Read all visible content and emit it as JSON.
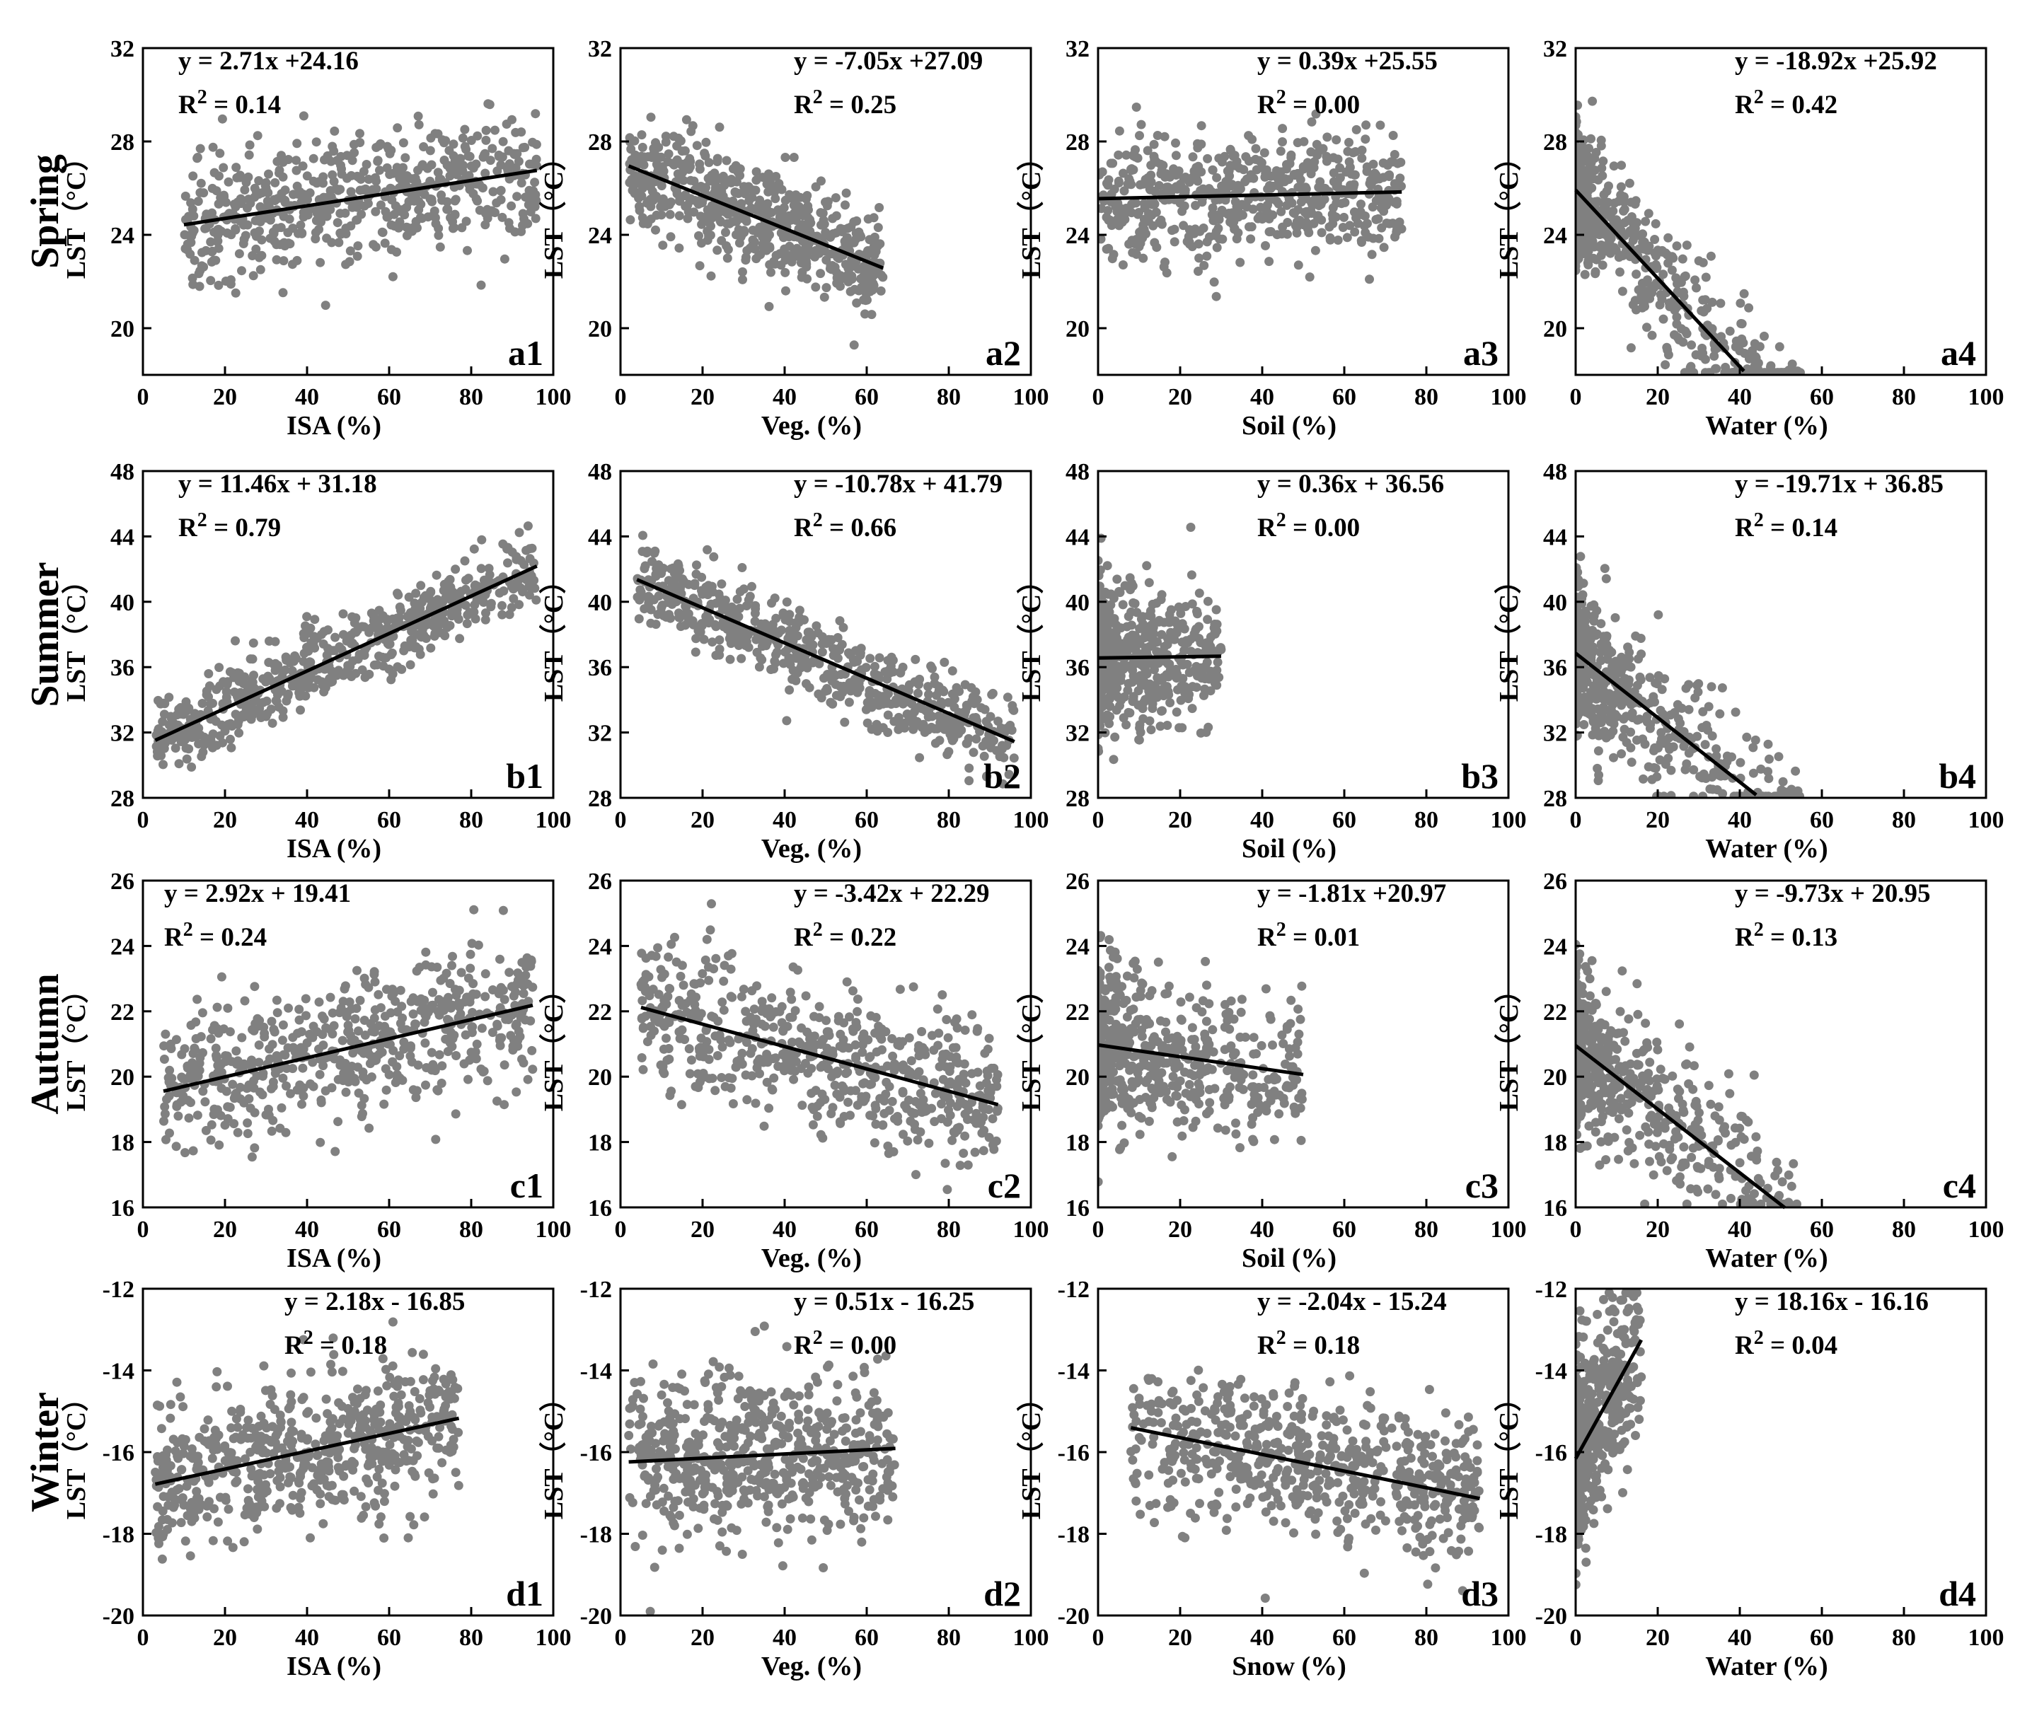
{
  "rows": [
    {
      "season": "Spring",
      "ylim": [
        18,
        32
      ],
      "yticks": [
        20,
        24,
        28,
        32
      ]
    },
    {
      "season": "Summer",
      "ylim": [
        28,
        48
      ],
      "yticks": [
        28,
        32,
        36,
        40,
        44,
        48
      ]
    },
    {
      "season": "Autumn",
      "ylim": [
        16,
        26
      ],
      "yticks": [
        16,
        18,
        20,
        22,
        24,
        26
      ]
    },
    {
      "season": "Winter",
      "ylim": [
        -20,
        -12
      ],
      "yticks": [
        -20,
        -18,
        -16,
        -14,
        -12
      ]
    }
  ],
  "chart_data": [
    {
      "type": "scatter",
      "id": "a1",
      "row": 0,
      "col": 0,
      "xlabel": "ISA (%)",
      "ylabel": "LST（°C）",
      "equation": "y = 2.71x +24.16",
      "r2": "R2 = 0.14",
      "slope": 2.71,
      "intercept": 24.16,
      "fit_x": [
        10,
        96
      ],
      "cloud": {
        "x": [
          10,
          96
        ],
        "jitter": 1.3
      }
    },
    {
      "type": "scatter",
      "id": "a2",
      "row": 0,
      "col": 1,
      "xlabel": "Veg. (%)",
      "ylabel": "LST（°C）",
      "equation": "y = -7.05x +27.09",
      "r2": "R2 = 0.25",
      "slope": -7.05,
      "intercept": 27.09,
      "fit_x": [
        2,
        64
      ],
      "cloud": {
        "x": [
          2,
          64
        ],
        "jitter": 1.2
      }
    },
    {
      "type": "scatter",
      "id": "a3",
      "row": 0,
      "col": 2,
      "xlabel": "Soil (%)",
      "ylabel": "LST（°C）",
      "equation": "y = 0.39x +25.55",
      "r2": "R2 = 0.00",
      "slope": 0.39,
      "intercept": 25.55,
      "fit_x": [
        0,
        74
      ],
      "cloud": {
        "x": [
          0,
          74
        ],
        "jitter": 1.3
      }
    },
    {
      "type": "scatter",
      "id": "a4",
      "row": 0,
      "col": 3,
      "xlabel": "Water (%)",
      "ylabel": "LST（°C）",
      "equation": "y = -18.92x +25.92",
      "r2": "R2 = 0.42",
      "slope": -18.92,
      "intercept": 25.92,
      "fit_x": [
        0,
        41
      ],
      "cloud": {
        "x": [
          0,
          55
        ],
        "jitter": 1.4
      }
    },
    {
      "type": "scatter",
      "id": "b1",
      "row": 1,
      "col": 0,
      "xlabel": "ISA (%)",
      "ylabel": "LST（°C）",
      "equation": "y = 11.46x + 31.18",
      "r2": "R2 = 0.79",
      "slope": 11.46,
      "intercept": 31.18,
      "fit_x": [
        3,
        96
      ],
      "cloud": {
        "x": [
          3,
          96
        ],
        "jitter": 1.2
      }
    },
    {
      "type": "scatter",
      "id": "b2",
      "row": 1,
      "col": 1,
      "xlabel": "Veg. (%)",
      "ylabel": "LST（°C）",
      "equation": "y = -10.78x + 41.79",
      "r2": "R2 = 0.66",
      "slope": -10.78,
      "intercept": 41.79,
      "fit_x": [
        4,
        96
      ],
      "cloud": {
        "x": [
          4,
          96
        ],
        "jitter": 1.3
      }
    },
    {
      "type": "scatter",
      "id": "b3",
      "row": 1,
      "col": 2,
      "xlabel": "Soil (%)",
      "ylabel": "LST（°C）",
      "equation": "y = 0.36x + 36.56",
      "r2": "R2 = 0.00",
      "slope": 0.36,
      "intercept": 36.56,
      "fit_x": [
        0,
        30
      ],
      "cloud": {
        "x": [
          0,
          30
        ],
        "jitter": 2.0
      }
    },
    {
      "type": "scatter",
      "id": "b4",
      "row": 1,
      "col": 3,
      "xlabel": "Water (%)",
      "ylabel": "LST（°C）",
      "equation": "y = -19.71x + 36.85",
      "r2": "R2 = 0.14",
      "slope": -19.71,
      "intercept": 36.85,
      "fit_x": [
        0,
        44
      ],
      "cloud": {
        "x": [
          0,
          55
        ],
        "jitter": 2.2
      }
    },
    {
      "type": "scatter",
      "id": "c1",
      "row": 2,
      "col": 0,
      "xlabel": "ISA (%)",
      "ylabel": "LST（°C）",
      "equation": "y = 2.92x + 19.41",
      "r2": "R2 = 0.24",
      "slope": 2.92,
      "intercept": 19.41,
      "fit_x": [
        5,
        95
      ],
      "cloud": {
        "x": [
          5,
          95
        ],
        "jitter": 1.1
      }
    },
    {
      "type": "scatter",
      "id": "c2",
      "row": 2,
      "col": 1,
      "xlabel": "Veg. (%)",
      "ylabel": "LST（°C）",
      "equation": "y = -3.42x + 22.29",
      "r2": "R2 = 0.22",
      "slope": -3.42,
      "intercept": 22.29,
      "fit_x": [
        5,
        92
      ],
      "cloud": {
        "x": [
          5,
          92
        ],
        "jitter": 1.1
      }
    },
    {
      "type": "scatter",
      "id": "c3",
      "row": 2,
      "col": 2,
      "xlabel": "Soil (%)",
      "ylabel": "LST（°C）",
      "equation": "y = -1.81x +20.97",
      "r2": "R2 = 0.01",
      "slope": -1.81,
      "intercept": 20.97,
      "fit_x": [
        0,
        50
      ],
      "cloud": {
        "x": [
          0,
          50
        ],
        "jitter": 1.2
      }
    },
    {
      "type": "scatter",
      "id": "c4",
      "row": 2,
      "col": 3,
      "xlabel": "Water (%)",
      "ylabel": "LST（°C）",
      "equation": "y = -9.73x + 20.95",
      "r2": "R2 = 0.13",
      "slope": -9.73,
      "intercept": 20.95,
      "fit_x": [
        0,
        51
      ],
      "cloud": {
        "x": [
          0,
          54
        ],
        "jitter": 1.2
      }
    },
    {
      "type": "scatter",
      "id": "d1",
      "row": 3,
      "col": 0,
      "xlabel": "ISA (%)",
      "ylabel": "LST（°C）",
      "equation": "y = 2.18x - 16.85",
      "r2": "R2 = 0.18",
      "slope": 2.18,
      "intercept": -16.85,
      "fit_x": [
        3,
        77
      ],
      "cloud": {
        "x": [
          3,
          77
        ],
        "jitter": 0.9
      }
    },
    {
      "type": "scatter",
      "id": "d2",
      "row": 3,
      "col": 1,
      "xlabel": "Veg. (%)",
      "ylabel": "LST（°C）",
      "equation": "y = 0.51x - 16.25",
      "r2": "R2 = 0.00",
      "slope": 0.51,
      "intercept": -16.25,
      "fit_x": [
        2,
        67
      ],
      "cloud": {
        "x": [
          2,
          67
        ],
        "jitter": 1.0
      }
    },
    {
      "type": "scatter",
      "id": "d3",
      "row": 3,
      "col": 2,
      "xlabel": "Snow (%)",
      "ylabel": "LST（°C）",
      "equation": "y = -2.04x - 15.24",
      "r2": "R2 = 0.18",
      "slope": -2.04,
      "intercept": -15.24,
      "fit_x": [
        8,
        93
      ],
      "cloud": {
        "x": [
          8,
          93
        ],
        "jitter": 0.9
      }
    },
    {
      "type": "scatter",
      "id": "d4",
      "row": 3,
      "col": 3,
      "xlabel": "Water (%)",
      "ylabel": "LST（°C）",
      "equation": "y = 18.16x - 16.16",
      "r2": "R2 = 0.04",
      "slope": 18.16,
      "intercept": -16.16,
      "fit_x": [
        0,
        16
      ],
      "cloud": {
        "x": [
          0,
          16
        ],
        "jitter": 1.2
      }
    }
  ],
  "xlim": [
    0,
    100
  ],
  "xticks": [
    0,
    20,
    40,
    60,
    80,
    100
  ],
  "point_color": "#808080",
  "line_color": "#000000"
}
